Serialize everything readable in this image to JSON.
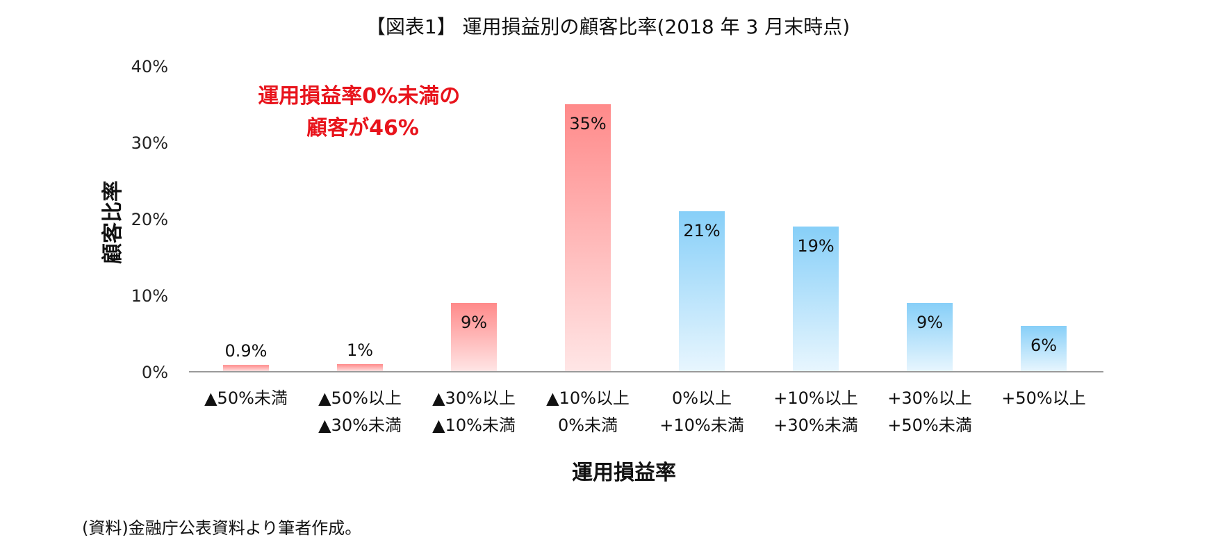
{
  "chart_data": {
    "type": "bar",
    "title": "【図表1】 運用損益別の顧客比率(2018 年 3 月末時点)",
    "xlabel": "運用損益率",
    "ylabel": "顧客比率",
    "ylim": [
      0,
      40
    ],
    "yticks": [
      "0%",
      "10%",
      "20%",
      "30%",
      "40%"
    ],
    "grid": false,
    "legend": "none",
    "categories": [
      [
        "▲50%未満"
      ],
      [
        "▲50%以上",
        "▲30%未満"
      ],
      [
        "▲30%以上",
        "▲10%未満"
      ],
      [
        "▲10%以上",
        "0%未満"
      ],
      [
        "0%以上",
        "+10%未満"
      ],
      [
        "+10%以上",
        "+30%未満"
      ],
      [
        "+30%以上",
        "+50%未満"
      ],
      [
        "+50%以上"
      ]
    ],
    "values": [
      0.9,
      1,
      9,
      35,
      21,
      19,
      9,
      6
    ],
    "value_labels": [
      "0.9%",
      "1%",
      "9%",
      "35%",
      "21%",
      "19%",
      "9%",
      "6%"
    ],
    "bar_groups": [
      "loss",
      "loss",
      "loss",
      "loss",
      "gain",
      "gain",
      "gain",
      "gain"
    ],
    "annotation": [
      "運用損益率0%未満の",
      "顧客が46%"
    ],
    "colors": {
      "loss_top": "#ff8a8a",
      "loss_bottom": "#ffe6e6",
      "gain_top": "#87cff8",
      "gain_bottom": "#e8f6fe",
      "annotation": "#e8141c",
      "axis": "#9a9a9a"
    }
  },
  "source_note": "(資料)金融庁公表資料より筆者作成。"
}
